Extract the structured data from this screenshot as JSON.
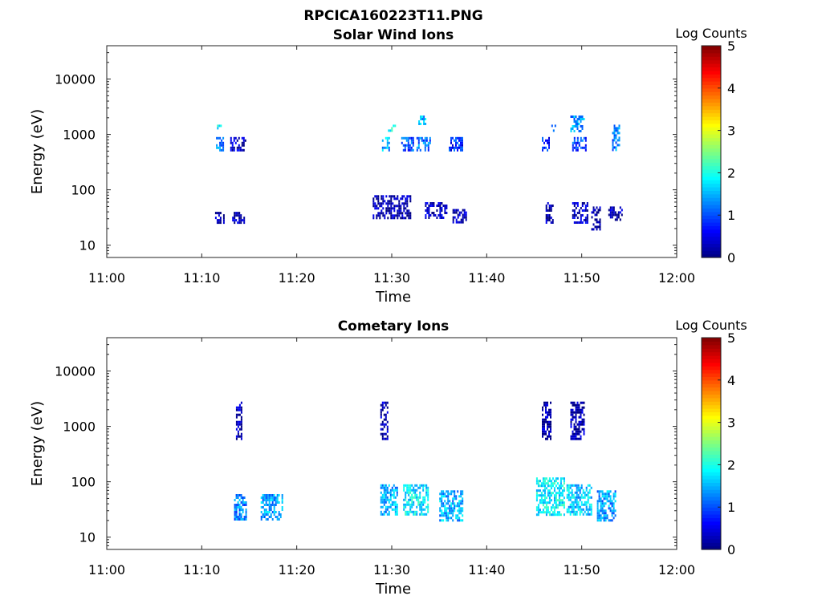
{
  "figure": {
    "title_line1": "RPCICA160223T11.PNG"
  },
  "chart_data": [
    {
      "type": "heatmap",
      "title": "Solar Wind Ions",
      "xlabel": "Time",
      "ylabel": "Energy (eV)",
      "x_range": [
        "11:00",
        "12:00"
      ],
      "y_scale": "log",
      "ylim": [
        6,
        40000
      ],
      "x_ticks": [
        "11:00",
        "11:10",
        "11:20",
        "11:30",
        "11:40",
        "11:50",
        "12:00"
      ],
      "y_ticks": [
        "10",
        "100",
        "1000",
        "10000"
      ],
      "y_tick_values": [
        10,
        100,
        1000,
        10000
      ],
      "colorbar": {
        "label": "Log Counts",
        "range": [
          0,
          5
        ],
        "ticks": [
          "0",
          "1",
          "2",
          "3",
          "4",
          "5"
        ],
        "colormap": "jet"
      },
      "clusters": [
        {
          "t": [
            11.6,
            12.0
          ],
          "e": [
            1200,
            1500
          ],
          "v": 1.8
        },
        {
          "t": [
            11.5,
            12.3
          ],
          "e": [
            500,
            900
          ],
          "v": 1.2
        },
        {
          "t": [
            11.4,
            12.4
          ],
          "e": [
            25,
            40
          ],
          "v": 0.2
        },
        {
          "t": [
            13.0,
            14.6
          ],
          "e": [
            500,
            900
          ],
          "v": 0.3
        },
        {
          "t": [
            13.2,
            14.4
          ],
          "e": [
            25,
            40
          ],
          "v": 0.3
        },
        {
          "t": [
            28.8,
            29.7
          ],
          "e": [
            500,
            900
          ],
          "v": 1.5
        },
        {
          "t": [
            29.6,
            30.4
          ],
          "e": [
            1200,
            1500
          ],
          "v": 2.0
        },
        {
          "t": [
            28.0,
            32.0
          ],
          "e": [
            30,
            80
          ],
          "v": 0.2
        },
        {
          "t": [
            31.0,
            32.2
          ],
          "e": [
            500,
            900
          ],
          "v": 1.0
        },
        {
          "t": [
            32.6,
            34.0
          ],
          "e": [
            500,
            900
          ],
          "v": 1.2
        },
        {
          "t": [
            32.8,
            33.6
          ],
          "e": [
            1500,
            2200
          ],
          "v": 1.6
        },
        {
          "t": [
            33.5,
            35.8
          ],
          "e": [
            30,
            60
          ],
          "v": 0.3
        },
        {
          "t": [
            36.0,
            37.5
          ],
          "e": [
            500,
            900
          ],
          "v": 0.8
        },
        {
          "t": [
            36.4,
            37.8
          ],
          "e": [
            25,
            45
          ],
          "v": 0.2
        },
        {
          "t": [
            45.8,
            46.6
          ],
          "e": [
            500,
            900
          ],
          "v": 0.8
        },
        {
          "t": [
            46.8,
            47.2
          ],
          "e": [
            1200,
            1500
          ],
          "v": 1.5
        },
        {
          "t": [
            46.2,
            47.0
          ],
          "e": [
            25,
            60
          ],
          "v": 0.2
        },
        {
          "t": [
            48.8,
            50.2
          ],
          "e": [
            1200,
            2200
          ],
          "v": 1.4
        },
        {
          "t": [
            49.0,
            50.4
          ],
          "e": [
            500,
            900
          ],
          "v": 1.0
        },
        {
          "t": [
            49.0,
            50.6
          ],
          "e": [
            25,
            60
          ],
          "v": 0.3
        },
        {
          "t": [
            51.0,
            52.0
          ],
          "e": [
            20,
            50
          ],
          "v": 0.1
        },
        {
          "t": [
            53.2,
            54.0
          ],
          "e": [
            500,
            1500
          ],
          "v": 1.2
        },
        {
          "t": [
            52.8,
            54.2
          ],
          "e": [
            30,
            50
          ],
          "v": 0.2
        }
      ]
    },
    {
      "type": "heatmap",
      "title": "Cometary Ions",
      "xlabel": "Time",
      "ylabel": "Energy (eV)",
      "x_range": [
        "11:00",
        "12:00"
      ],
      "y_scale": "log",
      "ylim": [
        6,
        40000
      ],
      "x_ticks": [
        "11:00",
        "11:10",
        "11:20",
        "11:30",
        "11:40",
        "11:50",
        "12:00"
      ],
      "y_ticks": [
        "10",
        "100",
        "1000",
        "10000"
      ],
      "y_tick_values": [
        10,
        100,
        1000,
        10000
      ],
      "colorbar": {
        "label": "Log Counts",
        "range": [
          0,
          5
        ],
        "ticks": [
          "0",
          "1",
          "2",
          "3",
          "4",
          "5"
        ],
        "colormap": "jet"
      },
      "clusters": [
        {
          "t": [
            13.4,
            14.6
          ],
          "e": [
            20,
            60
          ],
          "v": 1.3
        },
        {
          "t": [
            16.2,
            18.4
          ],
          "e": [
            20,
            60
          ],
          "v": 1.4
        },
        {
          "t": [
            13.6,
            14.2
          ],
          "e": [
            600,
            2800
          ],
          "v": 0.2
        },
        {
          "t": [
            28.8,
            30.6
          ],
          "e": [
            25,
            90
          ],
          "v": 1.5
        },
        {
          "t": [
            31.2,
            33.8
          ],
          "e": [
            25,
            90
          ],
          "v": 1.8
        },
        {
          "t": [
            35.0,
            37.4
          ],
          "e": [
            20,
            70
          ],
          "v": 1.5
        },
        {
          "t": [
            28.8,
            29.6
          ],
          "e": [
            600,
            2800
          ],
          "v": 0.2
        },
        {
          "t": [
            45.2,
            48.2
          ],
          "e": [
            25,
            120
          ],
          "v": 1.8
        },
        {
          "t": [
            48.4,
            51.0
          ],
          "e": [
            25,
            90
          ],
          "v": 1.6
        },
        {
          "t": [
            51.6,
            53.6
          ],
          "e": [
            20,
            70
          ],
          "v": 1.4
        },
        {
          "t": [
            45.8,
            46.8
          ],
          "e": [
            600,
            2800
          ],
          "v": 0.2
        },
        {
          "t": [
            48.8,
            50.2
          ],
          "e": [
            600,
            2800
          ],
          "v": 0.2
        }
      ]
    }
  ]
}
